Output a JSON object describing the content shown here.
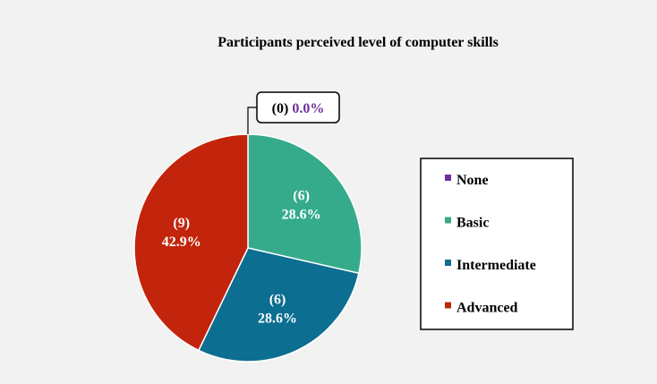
{
  "chart_data": {
    "type": "pie",
    "title": "Participants perceived level of computer skills",
    "categories": [
      "None",
      "Basic",
      "Intermediate",
      "Advanced"
    ],
    "values": [
      0,
      6,
      6,
      9
    ],
    "percent_labels": [
      "0.0%",
      "28.6%",
      "28.6%",
      "42.9%"
    ],
    "count_labels": [
      "(0)",
      "(6)",
      "(6)",
      "(9)"
    ],
    "colors": [
      "#7030a0",
      "#35ab8c",
      "#0c6e91",
      "#c2250c"
    ],
    "legend_position": "right"
  }
}
